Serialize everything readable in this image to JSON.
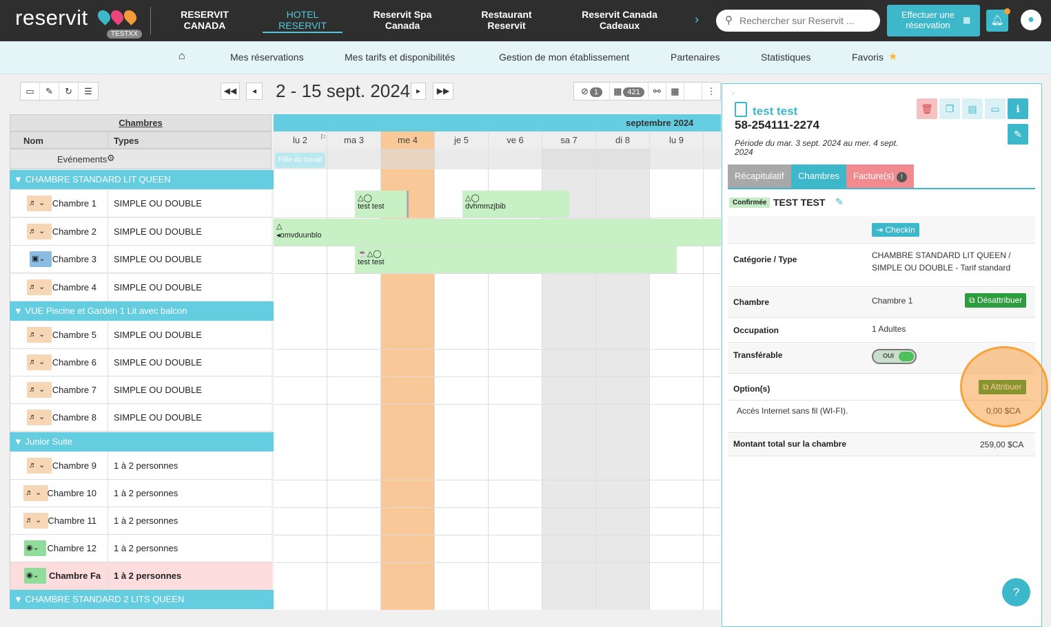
{
  "brand": {
    "logo": "reservit",
    "badge": "TESTXX"
  },
  "topnav": [
    {
      "line1": "RESERVIT",
      "line2": "CANADA"
    },
    {
      "line1": "HOTEL",
      "line2": "RESERVIT"
    },
    {
      "line1": "Reservit Spa",
      "line2": "Canada"
    },
    {
      "line1": "Restaurant",
      "line2": "Reservit"
    },
    {
      "line1": "Reservit Canada",
      "line2": "Cadeaux"
    }
  ],
  "search": {
    "placeholder": "Rechercher sur Reservit ..."
  },
  "booking_button": {
    "line1": "Effectuer une",
    "line2": "réservation"
  },
  "menu": [
    "Mes réservations",
    "Mes tarifs et disponibilités",
    "Gestion de mon établissement",
    "Partenaires",
    "Statistiques",
    "Favoris"
  ],
  "toolbar": {
    "date_range": "2 - 15 sept. 2024",
    "hidden_count": "1",
    "res_count": "421"
  },
  "grid": {
    "header_rooms": "Chambres",
    "col_name": "Nom",
    "col_types": "Types",
    "events_label": "Evénements",
    "month": "septembre 2024",
    "days": [
      "lu 2",
      "ma 3",
      "me 4",
      "je 5",
      "ve 6",
      "sa 7",
      "di 8",
      "lu 9",
      "m"
    ],
    "event": "Fête du travail",
    "categories": [
      "CHAMBRE STANDARD LIT QUEEN",
      "VUE Piscine et Garden 1 Lit avec balcon",
      "Junior Suite",
      "CHAMBRE STANDARD 2 LITS QUEEN"
    ],
    "rooms": [
      {
        "name": "Chambre 1",
        "type": "SIMPLE OU DOUBLE"
      },
      {
        "name": "Chambre 2",
        "type": "SIMPLE OU DOUBLE"
      },
      {
        "name": "Chambre 3",
        "type": "SIMPLE OU DOUBLE"
      },
      {
        "name": "Chambre 4",
        "type": "SIMPLE OU DOUBLE"
      },
      {
        "name": "Chambre 5",
        "type": "SIMPLE OU DOUBLE"
      },
      {
        "name": "Chambre 6",
        "type": "SIMPLE OU DOUBLE"
      },
      {
        "name": "Chambre 7",
        "type": "SIMPLE OU DOUBLE"
      },
      {
        "name": "Chambre 8",
        "type": "SIMPLE OU DOUBLE"
      },
      {
        "name": "Chambre 9",
        "type": "1 à 2 personnes"
      },
      {
        "name": "Chambre 10",
        "type": "1 à 2 personnes"
      },
      {
        "name": "Chambre 11",
        "type": "1 à 2 personnes"
      },
      {
        "name": "Chambre 12",
        "type": "1 à 2 personnes"
      },
      {
        "name": "Chambre Fant",
        "type": "1 à 2 personnes"
      }
    ],
    "reservations": [
      "test test",
      "dvhmmzjbib",
      "omvduunblo",
      "test test"
    ]
  },
  "panel": {
    "guest_title": "test test",
    "reservation_number": "58-254111-2274",
    "period": "Période du mar. 3 sept. 2024 au mer. 4 sept. 2024",
    "tabs": [
      "Récapitulatif",
      "Chambres",
      "Facture(s)"
    ],
    "status": "Confirmée",
    "guest_name": "TEST TEST",
    "checkin": "Checkin",
    "category_label": "Catégorie / Type",
    "category_value": "CHAMBRE STANDARD LIT QUEEN / SIMPLE OU DOUBLE - Tarif standard",
    "room_label": "Chambre",
    "room_value": "Chambre 1",
    "unassign": "Désattribuer",
    "occupancy_label": "Occupation",
    "occupancy_value": "1 Adultes",
    "transferable_label": "Transférable",
    "toggle": "OUI",
    "options_label": "Option(s)",
    "assign": "Attribuer",
    "option_name": "Accès Internet sans fil (WI-FI).",
    "option_price": "0,00 $CA",
    "total_label": "Montant total sur la chambre",
    "total_value": "259,00 $CA"
  },
  "help": "?"
}
